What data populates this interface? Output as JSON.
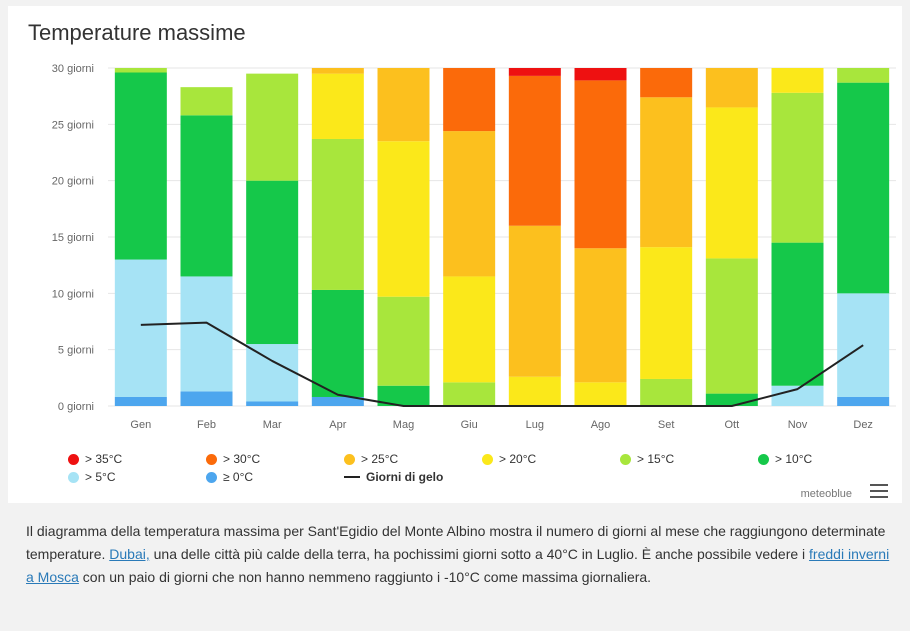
{
  "chart_data": {
    "type": "bar",
    "stacked": true,
    "title": "Temperature massime",
    "categories": [
      "Gen",
      "Feb",
      "Mar",
      "Apr",
      "Mag",
      "Giu",
      "Lug",
      "Ago",
      "Set",
      "Ott",
      "Nov",
      "Dez"
    ],
    "y_ticks": [
      "0 giorni",
      "5 giorni",
      "10 giorni",
      "15 giorni",
      "20 giorni",
      "25 giorni",
      "30 giorni"
    ],
    "ylim": [
      0,
      30
    ],
    "grid": true,
    "legend_position": "bottom",
    "series": [
      {
        "name": "≥ 0°C",
        "color": "#4da6ee",
        "values": [
          0.8,
          1.3,
          0.4,
          0.8,
          0.0,
          0.0,
          0.0,
          0.0,
          0.0,
          0.0,
          0.0,
          0.8
        ]
      },
      {
        "name": "> 5°C",
        "color": "#a6e3f5",
        "values": [
          12.2,
          10.2,
          5.1,
          0.0,
          0.0,
          0.0,
          0.0,
          0.0,
          0.0,
          0.0,
          1.8,
          9.2
        ]
      },
      {
        "name": "> 10°C",
        "color": "#15c84a",
        "values": [
          16.6,
          14.3,
          14.5,
          9.5,
          1.8,
          0.0,
          0.0,
          0.0,
          0.0,
          1.1,
          12.7,
          18.7
        ]
      },
      {
        "name": "> 15°C",
        "color": "#a8e63c",
        "values": [
          0.4,
          2.5,
          9.5,
          13.4,
          7.9,
          2.1,
          0.0,
          0.0,
          2.4,
          12.0,
          13.3,
          1.3
        ]
      },
      {
        "name": "> 20°C",
        "color": "#fbe81a",
        "values": [
          0.0,
          0.0,
          0.0,
          5.8,
          13.8,
          9.4,
          2.6,
          2.1,
          11.7,
          13.4,
          2.2,
          0.0
        ]
      },
      {
        "name": "> 25°C",
        "color": "#fcc01e",
        "values": [
          0.0,
          0.0,
          0.0,
          0.5,
          6.5,
          12.9,
          13.4,
          11.9,
          13.3,
          3.5,
          0.0,
          0.0
        ]
      },
      {
        "name": "> 30°C",
        "color": "#fb6a0a",
        "values": [
          0.0,
          0.0,
          0.0,
          0.0,
          0.0,
          5.6,
          13.3,
          14.9,
          2.6,
          0.0,
          0.0,
          0.0
        ]
      },
      {
        "name": "> 35°C",
        "color": "#ee1111",
        "values": [
          0.0,
          0.0,
          0.0,
          0.0,
          0.0,
          0.0,
          0.7,
          1.1,
          0.0,
          0.0,
          0.0,
          0.0
        ]
      }
    ],
    "line_series": {
      "name": "Giorni di gelo",
      "color": "#222222",
      "values": [
        7.2,
        7.4,
        4.0,
        1.0,
        0.0,
        0.0,
        0.0,
        0.0,
        0.0,
        0.0,
        1.5,
        5.4
      ]
    }
  },
  "legend": [
    {
      "label": "> 35°C",
      "color": "#ee1111"
    },
    {
      "label": "> 30°C",
      "color": "#fb6a0a"
    },
    {
      "label": "> 25°C",
      "color": "#fcc01e"
    },
    {
      "label": "> 20°C",
      "color": "#fbe81a"
    },
    {
      "label": "> 15°C",
      "color": "#a8e63c"
    },
    {
      "label": "> 10°C",
      "color": "#15c84a"
    },
    {
      "label": "> 5°C",
      "color": "#a6e3f5"
    },
    {
      "label": "≥ 0°C",
      "color": "#4da6ee"
    }
  ],
  "legend_line_label": "Giorni di gelo",
  "credit": "meteoblue",
  "menu_icon": "hamburger-menu-icon",
  "caption": {
    "part1": "Il diagramma della temperatura massima per Sant'Egidio del Monte Albino mostra il numero di giorni al mese che raggiungono determinate temperature. ",
    "link1": "Dubai,",
    "part2": " una delle città più calde della terra, ha pochissimi giorni sotto a 40°C in Luglio. È anche possibile vedere i ",
    "link2": "freddi inverni a Mosca",
    "part3": " con un paio di giorni che non hanno nemmeno raggiunto i -10°C come massima giornaliera."
  }
}
